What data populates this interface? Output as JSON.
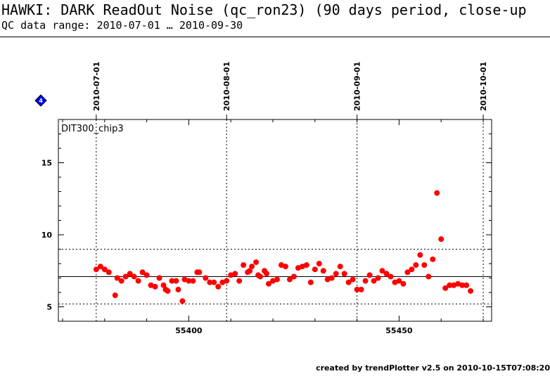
{
  "header": {
    "title": "HAWKI: DARK ReadOut Noise (qc_ron23) (90 days period, close-up",
    "subtitle": "QC data range: 2010-07-01 … 2010-09-30"
  },
  "footer": {
    "credit": "created by trendPlotter v2.5 on 2010-10-15T07:08:20"
  },
  "colors": {
    "points": "#ff0000",
    "marker": "#0000ff",
    "axes": "#000000"
  },
  "chart_data": {
    "type": "scatter",
    "panel_label": "DIT300_chip3",
    "marker_icon": "blue-diamond-icon",
    "marker_label": "4",
    "xlim": [
      55369,
      55472
    ],
    "ylim": [
      4,
      18
    ],
    "xticks": [
      55400,
      55450
    ],
    "yticks": [
      5,
      10,
      15
    ],
    "date_markers": [
      {
        "label": "2010-07-01",
        "x": 55378
      },
      {
        "label": "2010-08-01",
        "x": 55409
      },
      {
        "label": "2010-09-01",
        "x": 55440
      },
      {
        "label": "2010-10-01",
        "x": 55470
      }
    ],
    "mean_line": 7.1,
    "limit_lines": [
      9.0,
      5.2
    ],
    "grid": false,
    "series": [
      {
        "points": [
          [
            55378.0,
            7.6
          ],
          [
            55379.0,
            7.8
          ],
          [
            55380.0,
            7.6
          ],
          [
            55381.0,
            7.4
          ],
          [
            55382.5,
            5.8
          ],
          [
            55383.0,
            7.0
          ],
          [
            55384.0,
            6.8
          ],
          [
            55385.0,
            7.1
          ],
          [
            55386.0,
            7.3
          ],
          [
            55387.0,
            7.1
          ],
          [
            55388.0,
            6.8
          ],
          [
            55389.0,
            7.4
          ],
          [
            55390.0,
            7.2
          ],
          [
            55391.0,
            6.5
          ],
          [
            55392.0,
            6.4
          ],
          [
            55393.0,
            7.0
          ],
          [
            55394.0,
            6.5
          ],
          [
            55394.5,
            6.2
          ],
          [
            55395.0,
            6.1
          ],
          [
            55396.0,
            6.8
          ],
          [
            55397.0,
            6.8
          ],
          [
            55397.5,
            6.2
          ],
          [
            55398.5,
            5.4
          ],
          [
            55399.0,
            6.9
          ],
          [
            55400.0,
            6.8
          ],
          [
            55401.0,
            6.8
          ],
          [
            55402.0,
            7.4
          ],
          [
            55402.5,
            7.4
          ],
          [
            55404.0,
            7.0
          ],
          [
            55405.0,
            6.7
          ],
          [
            55406.0,
            6.7
          ],
          [
            55407.0,
            6.4
          ],
          [
            55408.0,
            6.7
          ],
          [
            55409.0,
            6.8
          ],
          [
            55410.0,
            7.2
          ],
          [
            55411.0,
            7.3
          ],
          [
            55412.0,
            6.8
          ],
          [
            55413.0,
            7.9
          ],
          [
            55414.0,
            7.4
          ],
          [
            55414.5,
            7.5
          ],
          [
            55415.0,
            7.8
          ],
          [
            55416.0,
            8.1
          ],
          [
            55416.5,
            7.2
          ],
          [
            55417.0,
            7.1
          ],
          [
            55418.0,
            7.5
          ],
          [
            55418.5,
            7.3
          ],
          [
            55419.0,
            6.6
          ],
          [
            55420.0,
            6.8
          ],
          [
            55421.0,
            6.9
          ],
          [
            55422.0,
            7.9
          ],
          [
            55423.0,
            7.8
          ],
          [
            55424.0,
            6.9
          ],
          [
            55425.0,
            7.1
          ],
          [
            55426.0,
            7.7
          ],
          [
            55427.0,
            7.8
          ],
          [
            55428.0,
            7.9
          ],
          [
            55429.0,
            6.7
          ],
          [
            55430.0,
            7.6
          ],
          [
            55431.0,
            8.0
          ],
          [
            55432.0,
            7.5
          ],
          [
            55433.0,
            6.9
          ],
          [
            55434.0,
            7.0
          ],
          [
            55435.0,
            7.3
          ],
          [
            55436.0,
            7.8
          ],
          [
            55437.0,
            7.3
          ],
          [
            55438.0,
            6.7
          ],
          [
            55439.0,
            6.9
          ],
          [
            55440.0,
            6.2
          ],
          [
            55441.0,
            6.2
          ],
          [
            55442.0,
            6.8
          ],
          [
            55443.0,
            7.2
          ],
          [
            55444.0,
            6.8
          ],
          [
            55445.0,
            7.0
          ],
          [
            55446.0,
            7.5
          ],
          [
            55447.0,
            7.3
          ],
          [
            55448.0,
            7.1
          ],
          [
            55449.0,
            6.7
          ],
          [
            55450.0,
            6.8
          ],
          [
            55451.0,
            6.6
          ],
          [
            55452.0,
            7.4
          ],
          [
            55453.0,
            7.6
          ],
          [
            55454.0,
            7.9
          ],
          [
            55455.0,
            8.6
          ],
          [
            55456.0,
            7.9
          ],
          [
            55457.0,
            7.1
          ],
          [
            55458.0,
            8.3
          ],
          [
            55459.0,
            12.9
          ],
          [
            55460.0,
            9.7
          ],
          [
            55461.0,
            6.3
          ],
          [
            55462.0,
            6.5
          ],
          [
            55463.0,
            6.5
          ],
          [
            55464.0,
            6.6
          ],
          [
            55465.0,
            6.5
          ],
          [
            55466.0,
            6.5
          ],
          [
            55467.0,
            6.1
          ]
        ]
      }
    ]
  }
}
